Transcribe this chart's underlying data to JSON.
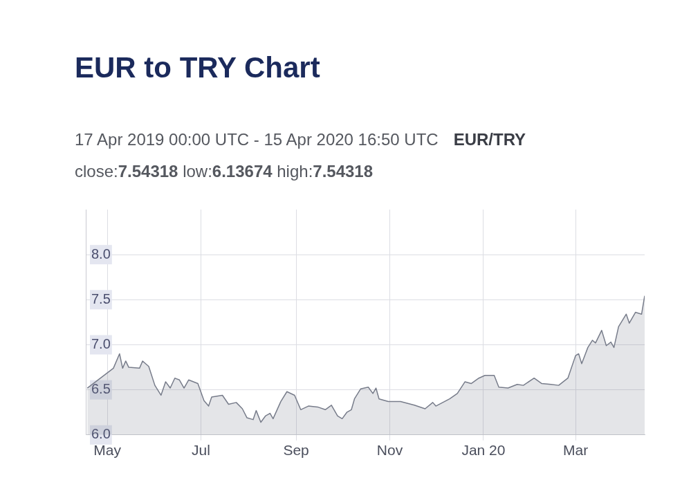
{
  "chart_data": {
    "type": "area",
    "title": "EUR to TRY Chart",
    "subtitle": "17 Apr 2019 00:00 UTC - 15 Apr 2020 16:50 UTC",
    "annotations": [
      "EUR/TRY",
      "close:7.54318 low:6.13674 high:7.54318"
    ],
    "x": [
      "2019-04-18",
      "2019-05-05",
      "2019-05-09",
      "2019-05-11",
      "2019-05-13",
      "2019-05-15",
      "2019-05-22",
      "2019-05-24",
      "2019-05-28",
      "2019-06-01",
      "2019-06-05",
      "2019-06-08",
      "2019-06-11",
      "2019-06-14",
      "2019-06-17",
      "2019-06-20",
      "2019-06-23",
      "2019-06-29",
      "2019-07-03",
      "2019-07-06",
      "2019-07-08",
      "2019-07-15",
      "2019-07-19",
      "2019-07-24",
      "2019-07-28",
      "2019-07-31",
      "2019-08-04",
      "2019-08-06",
      "2019-08-09",
      "2019-08-12",
      "2019-08-15",
      "2019-08-17",
      "2019-08-22",
      "2019-08-26",
      "2019-08-31",
      "2019-09-04",
      "2019-09-09",
      "2019-09-15",
      "2019-09-20",
      "2019-09-24",
      "2019-09-28",
      "2019-10-01",
      "2019-10-04",
      "2019-10-07",
      "2019-10-09",
      "2019-10-13",
      "2019-10-18",
      "2019-10-21",
      "2019-10-23",
      "2019-10-25",
      "2019-10-31",
      "2019-11-08",
      "2019-11-17",
      "2019-11-24",
      "2019-11-29",
      "2019-12-01",
      "2019-12-10",
      "2019-12-15",
      "2019-12-20",
      "2019-12-24",
      "2019-12-29",
      "2020-01-02",
      "2020-01-08",
      "2020-01-11",
      "2020-01-17",
      "2020-01-23",
      "2020-01-27",
      "2020-02-03",
      "2020-02-08",
      "2020-02-14",
      "2020-02-19",
      "2020-02-25",
      "2020-03-01",
      "2020-03-03",
      "2020-03-05",
      "2020-03-09",
      "2020-03-12",
      "2020-03-14",
      "2020-03-18",
      "2020-03-21",
      "2020-03-24",
      "2020-03-26",
      "2020-03-29",
      "2020-04-03",
      "2020-04-05",
      "2020-04-09",
      "2020-04-13",
      "2020-04-15"
    ],
    "series": [
      {
        "color": "#777c8a",
        "values": [
          6.52,
          6.74,
          6.9,
          6.74,
          6.82,
          6.75,
          6.74,
          6.82,
          6.76,
          6.55,
          6.44,
          6.59,
          6.52,
          6.63,
          6.61,
          6.52,
          6.61,
          6.57,
          6.38,
          6.32,
          6.42,
          6.44,
          6.34,
          6.36,
          6.29,
          6.19,
          6.17,
          6.27,
          6.14,
          6.21,
          6.24,
          6.18,
          6.37,
          6.48,
          6.44,
          6.28,
          6.32,
          6.31,
          6.28,
          6.33,
          6.21,
          6.18,
          6.25,
          6.28,
          6.4,
          6.51,
          6.53,
          6.46,
          6.52,
          6.4,
          6.37,
          6.37,
          6.33,
          6.29,
          6.36,
          6.32,
          6.4,
          6.46,
          6.59,
          6.57,
          6.63,
          6.66,
          6.66,
          6.53,
          6.52,
          6.56,
          6.55,
          6.63,
          6.57,
          6.56,
          6.55,
          6.63,
          6.88,
          6.9,
          6.79,
          6.97,
          7.05,
          7.02,
          7.16,
          6.99,
          7.03,
          6.97,
          7.2,
          7.34,
          7.24,
          7.36,
          7.34,
          7.54318
        ]
      }
    ],
    "xlim": [
      "2019-04-17",
      "2020-04-15"
    ],
    "xticks": [
      {
        "value": "2019-05-01",
        "label": "May"
      },
      {
        "value": "2019-07-01",
        "label": "Jul"
      },
      {
        "value": "2019-09-01",
        "label": "Sep"
      },
      {
        "value": "2019-11-01",
        "label": "Nov"
      },
      {
        "value": "2020-01-01",
        "label": "Jan 20"
      },
      {
        "value": "2020-03-01",
        "label": "Mar"
      }
    ],
    "ylim": [
      6.0,
      8.5
    ],
    "yticks": [
      {
        "value": 6.0,
        "label": "6.0"
      },
      {
        "value": 6.5,
        "label": "6.5"
      },
      {
        "value": 7.0,
        "label": "7.0"
      },
      {
        "value": 7.5,
        "label": "7.5"
      },
      {
        "value": 8.0,
        "label": "8.0"
      }
    ],
    "grid": true,
    "legend": false,
    "marker": "none",
    "line_style": "solid"
  }
}
